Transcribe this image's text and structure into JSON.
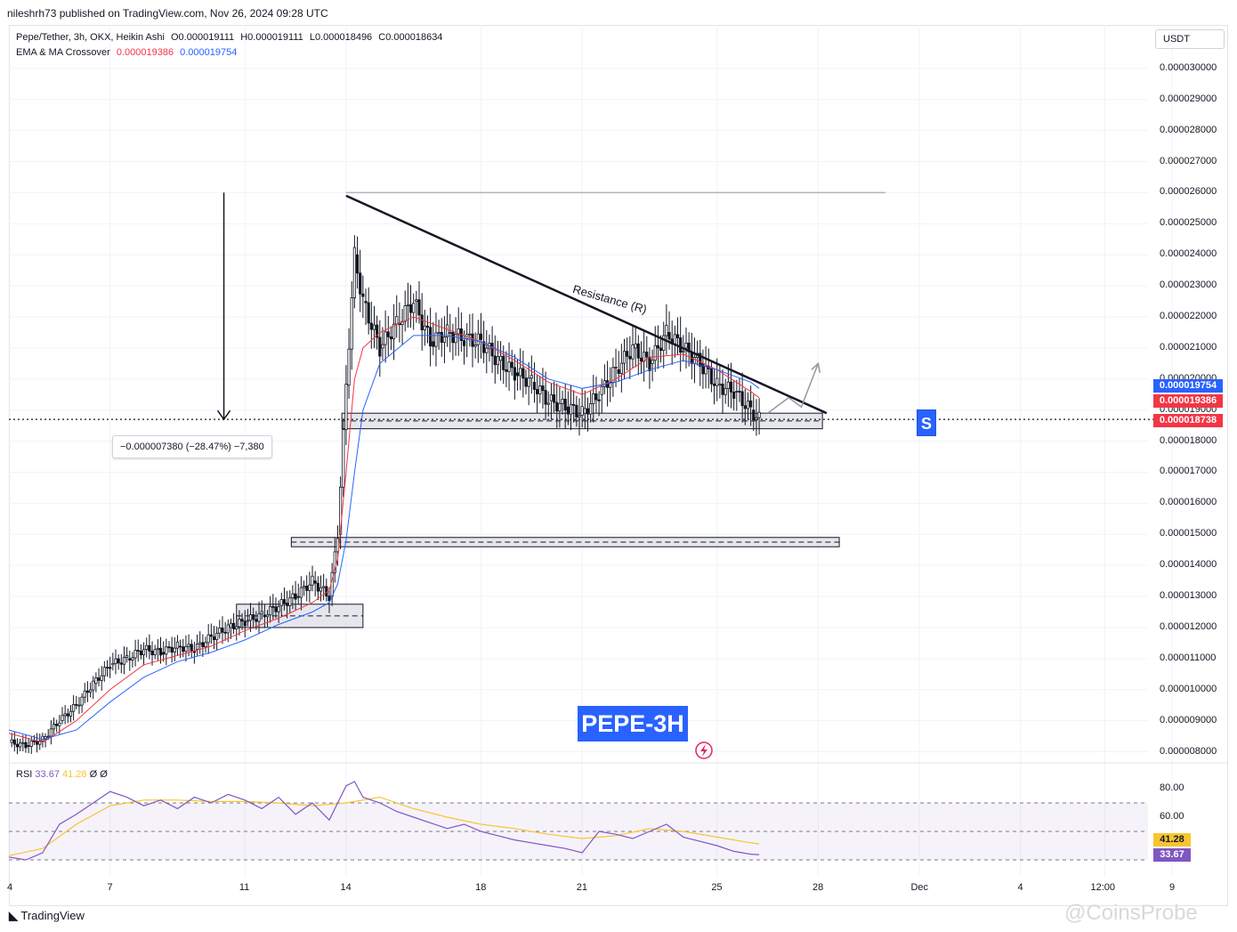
{
  "header": {
    "published": "nileshrh73 published on TradingView.com, Nov 26, 2024 09:28 UTC"
  },
  "legend": {
    "symbol": "Pepe/Tether, 3h, OKX, Heikin Ashi",
    "open": "O0.000019111",
    "high": "H0.000019111",
    "low": "L0.000018496",
    "close": "C0.000018634",
    "indicator": "EMA & MA Crossover",
    "ema_value": "0.000019386",
    "ma_value": "0.000019754"
  },
  "currency": "USDT",
  "price_tags": {
    "ma": "0.000019754",
    "ema": "0.000019386",
    "last": "0.000018738"
  },
  "rsi": {
    "label": "RSI",
    "value": "33.67",
    "ma": "41.28",
    "flags": "Ø Ø",
    "tag_ma": "41.28",
    "tag_value": "33.67"
  },
  "annotations": {
    "measure": "−0.000007380 (−28.47%) −7,380",
    "resistance": "Resistance (R)",
    "badge": "PEPE-3H",
    "s_badge": "S"
  },
  "footer": {
    "logo": "TradingView",
    "watermark": "@CoinsProbe"
  },
  "colors": {
    "ema": "#f23645",
    "ma": "#2962ff",
    "rsi": "#7e57c2",
    "rsi_ma": "#f7c531",
    "up": "#089981",
    "down": "#f23645"
  },
  "chart_data": {
    "type": "line",
    "title": "Pepe/Tether, 3h, OKX, Heikin Ashi",
    "xlabel": "",
    "ylabel": "",
    "ylim": [
      7.7e-06,
      3.14e-05
    ],
    "y_ticks": [
      "0.000030000",
      "0.000029000",
      "0.000028000",
      "0.000027000",
      "0.000026000",
      "0.000025000",
      "0.000024000",
      "0.000023000",
      "0.000022000",
      "0.000021000",
      "0.000020000",
      "0.000019000",
      "0.000018000",
      "0.000017000",
      "0.000016000",
      "0.000015000",
      "0.000014000",
      "0.000013000",
      "0.000012000",
      "0.000011000",
      "0.000010000",
      "0.000009000",
      "0.000008000"
    ],
    "x_ticks": [
      "4",
      "7",
      "11",
      "14",
      "18",
      "21",
      "25",
      "28",
      "Dec",
      "4",
      "12:00",
      "9"
    ],
    "x_domain": [
      0,
      129
    ],
    "x_tick_positions": [
      0,
      12,
      28,
      40,
      56,
      68,
      84,
      96,
      108,
      120,
      130,
      138
    ],
    "candles_note": "approximate Heikin Ashi closes (3h candles)",
    "series": [
      {
        "name": "Price",
        "x": [
          0,
          2,
          4,
          6,
          8,
          10,
          12,
          14,
          16,
          18,
          20,
          22,
          24,
          26,
          28,
          30,
          32,
          34,
          36,
          38,
          39,
          40,
          41,
          42,
          44,
          46,
          48,
          50,
          52,
          54,
          56,
          58,
          60,
          62,
          64,
          66,
          68,
          70,
          72,
          74,
          76,
          78,
          80,
          82,
          84,
          86,
          88,
          89
        ],
        "values": [
          8.3e-06,
          8.2e-06,
          8.4e-06,
          9e-06,
          9.5e-06,
          1.02e-05,
          1.08e-05,
          1.1e-05,
          1.13e-05,
          1.12e-05,
          1.14e-05,
          1.13e-05,
          1.17e-05,
          1.2e-05,
          1.22e-05,
          1.24e-05,
          1.27e-05,
          1.3e-05,
          1.35e-05,
          1.3e-05,
          1.5e-05,
          1.98e-05,
          2.4e-05,
          2.25e-05,
          2.1e-05,
          2.18e-05,
          2.25e-05,
          2.12e-05,
          2.15e-05,
          2.13e-05,
          2.12e-05,
          2.06e-05,
          2.02e-05,
          1.99e-05,
          1.93e-05,
          1.91e-05,
          1.89e-05,
          1.95e-05,
          2.03e-05,
          2.1e-05,
          2.05e-05,
          2.15e-05,
          2.1e-05,
          2.05e-05,
          1.98e-05,
          1.96e-05,
          1.9e-05,
          1.87e-05
        ]
      },
      {
        "name": "EMA",
        "x": [
          0,
          4,
          8,
          12,
          16,
          20,
          24,
          28,
          32,
          36,
          38,
          39,
          40,
          41,
          42,
          44,
          48,
          52,
          56,
          60,
          64,
          68,
          72,
          76,
          80,
          84,
          88,
          89
        ],
        "values": [
          8.6e-06,
          8.3e-06,
          9e-06,
          1e-05,
          1.08e-05,
          1.11e-05,
          1.14e-05,
          1.19e-05,
          1.23e-05,
          1.28e-05,
          1.32e-05,
          1.42e-05,
          1.7e-05,
          2e-05,
          2.1e-05,
          2.15e-05,
          2.2e-05,
          2.16e-05,
          2.12e-05,
          2.06e-05,
          1.99e-05,
          1.95e-05,
          2e-05,
          2.07e-05,
          2.08e-05,
          2.03e-05,
          1.96e-05,
          1.94e-05
        ]
      },
      {
        "name": "MA",
        "x": [
          0,
          4,
          8,
          12,
          16,
          20,
          24,
          28,
          32,
          36,
          38,
          39,
          40,
          41,
          42,
          44,
          48,
          52,
          56,
          60,
          64,
          68,
          72,
          76,
          80,
          84,
          88,
          89
        ],
        "values": [
          8.7e-06,
          8.4e-06,
          8.7e-06,
          9.6e-06,
          1.04e-05,
          1.09e-05,
          1.12e-05,
          1.16e-05,
          1.21e-05,
          1.25e-05,
          1.28e-05,
          1.34e-05,
          1.48e-05,
          1.7e-05,
          1.9e-05,
          2.05e-05,
          2.14e-05,
          2.14e-05,
          2.12e-05,
          2.07e-05,
          2e-05,
          1.97e-05,
          1.99e-05,
          2.03e-05,
          2.06e-05,
          2.03e-05,
          1.99e-05,
          1.97e-05
        ]
      }
    ],
    "rsi_chart": {
      "ylim": [
        20,
        90
      ],
      "y_ticks": [
        "80.00",
        "60.00"
      ],
      "bands": [
        70,
        50,
        30
      ],
      "series": [
        {
          "name": "RSI",
          "x": [
            0,
            2,
            4,
            6,
            8,
            10,
            12,
            14,
            16,
            18,
            20,
            22,
            24,
            26,
            28,
            30,
            32,
            34,
            36,
            38,
            40,
            41,
            42,
            44,
            46,
            48,
            50,
            52,
            54,
            56,
            58,
            60,
            62,
            64,
            66,
            68,
            70,
            72,
            74,
            76,
            78,
            80,
            82,
            84,
            86,
            88,
            89
          ],
          "values": [
            32,
            30,
            35,
            55,
            62,
            70,
            78,
            74,
            68,
            72,
            66,
            74,
            70,
            76,
            72,
            66,
            74,
            62,
            70,
            58,
            82,
            85,
            74,
            70,
            64,
            60,
            56,
            52,
            55,
            50,
            47,
            44,
            42,
            40,
            38,
            35,
            50,
            48,
            45,
            50,
            55,
            46,
            43,
            40,
            36,
            34,
            33.67
          ]
        },
        {
          "name": "RSI-based MA",
          "x": [
            0,
            4,
            8,
            12,
            16,
            20,
            24,
            28,
            32,
            36,
            40,
            44,
            48,
            52,
            56,
            60,
            64,
            68,
            72,
            76,
            80,
            84,
            88,
            89
          ],
          "values": [
            33,
            38,
            55,
            68,
            72,
            72,
            71,
            71,
            70,
            68,
            70,
            74,
            66,
            60,
            55,
            52,
            48,
            45,
            47,
            52,
            50,
            46,
            42,
            41.28
          ]
        }
      ]
    },
    "grid": true,
    "legend_position": "top-left"
  }
}
